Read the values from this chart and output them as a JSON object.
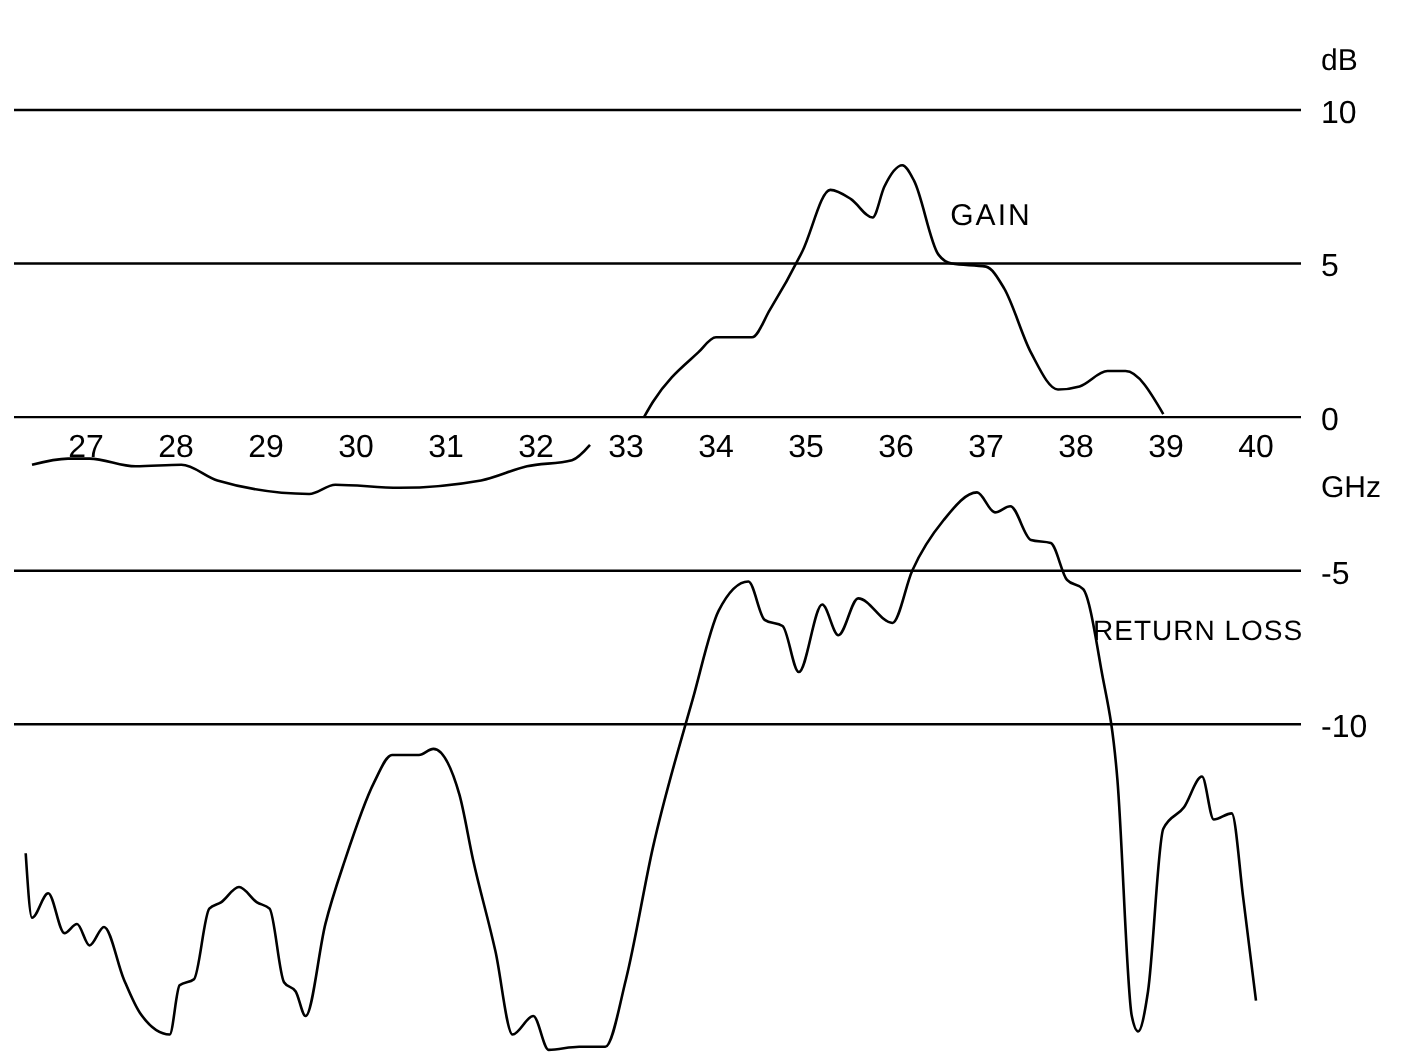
{
  "chart_data": {
    "type": "line",
    "xlabel": "GHz",
    "ylabel": "dB",
    "xlim": [
      26.2,
      40.5
    ],
    "xticks": [
      27,
      28,
      29,
      30,
      31,
      32,
      33,
      34,
      35,
      36,
      37,
      38,
      39,
      40
    ],
    "ylim": [
      -20.8,
      10
    ],
    "yticks": [
      10,
      5,
      0,
      -5,
      -10
    ],
    "grid": "y",
    "legend": false,
    "marker": "none",
    "line_style": "solid",
    "series": [
      {
        "name": "GAIN",
        "color": "#000000",
        "x": [
          33.2,
          33.3,
          33.8,
          34.0,
          34.4,
          34.6,
          34.96,
          35.27,
          35.5,
          35.74,
          35.87,
          36.07,
          36.2,
          36.47,
          36.62,
          37.0,
          37.2,
          37.5,
          37.8,
          38.04,
          38.35,
          38.55,
          38.97
        ],
        "values": [
          0,
          0.5,
          2.1,
          2.6,
          2.6,
          3.5,
          5.4,
          7.4,
          7.1,
          6.5,
          7.5,
          8.2,
          7.7,
          5.3,
          5.0,
          4.9,
          4.2,
          2.1,
          0.9,
          1.0,
          1.5,
          1.5,
          0.1
        ]
      },
      {
        "color": "#000000",
        "x": [
          26.4,
          26.8,
          27.04,
          27.55,
          28.06,
          28.46,
          29.48,
          29.77,
          30.48,
          31.39,
          31.9,
          32.4,
          32.6
        ],
        "values": [
          -1.55,
          -1.35,
          -1.35,
          -1.6,
          -1.55,
          -2.06,
          -2.5,
          -2.2,
          -2.3,
          -2.06,
          -1.6,
          -1.4,
          -0.9
        ]
      },
      {
        "name": "RETURN LOSS",
        "color": "#000000",
        "x": [
          26.33,
          26.4,
          26.58,
          26.76,
          26.9,
          27.04,
          27.2,
          27.42,
          27.6,
          27.93,
          28.04,
          28.2,
          28.37,
          28.5,
          28.7,
          28.9,
          29.04,
          29.2,
          29.33,
          29.44,
          29.66,
          29.88,
          30.2,
          30.4,
          30.7,
          30.86,
          31.15,
          31.3,
          31.55,
          31.74,
          31.97,
          32.14,
          32.48,
          32.77,
          33.0,
          33.3,
          33.74,
          34.03,
          34.36,
          34.54,
          34.74,
          34.92,
          35.18,
          35.36,
          35.58,
          35.96,
          36.18,
          36.53,
          36.9,
          37.1,
          37.27,
          37.5,
          37.72,
          37.9,
          38.08,
          38.28,
          38.46,
          38.62,
          38.69,
          38.8,
          38.97,
          39.2,
          39.4,
          39.53,
          39.73,
          39.86,
          40.0
        ],
        "values": [
          -14.2,
          -16.3,
          -15.5,
          -16.8,
          -16.5,
          -17.2,
          -16.6,
          -18.3,
          -19.4,
          -20.1,
          -18.5,
          -18.3,
          -16.0,
          -15.8,
          -15.3,
          -15.8,
          -16.0,
          -18.4,
          -18.7,
          -19.5,
          -16.5,
          -14.4,
          -11.9,
          -11.0,
          -11.0,
          -10.8,
          -12.3,
          -14.4,
          -17.4,
          -20.1,
          -19.5,
          -20.6,
          -20.5,
          -20.5,
          -18.3,
          -14.0,
          -9.2,
          -6.3,
          -5.35,
          -6.6,
          -6.8,
          -8.3,
          -6.1,
          -7.1,
          -5.9,
          -6.7,
          -5.0,
          -3.35,
          -2.45,
          -3.1,
          -2.9,
          -4.0,
          -4.1,
          -5.3,
          -5.6,
          -8.2,
          -11.8,
          -19.5,
          -20.0,
          -18.7,
          -13.4,
          -12.7,
          -11.7,
          -13.1,
          -12.9,
          -15.7,
          -19.0
        ]
      }
    ]
  }
}
